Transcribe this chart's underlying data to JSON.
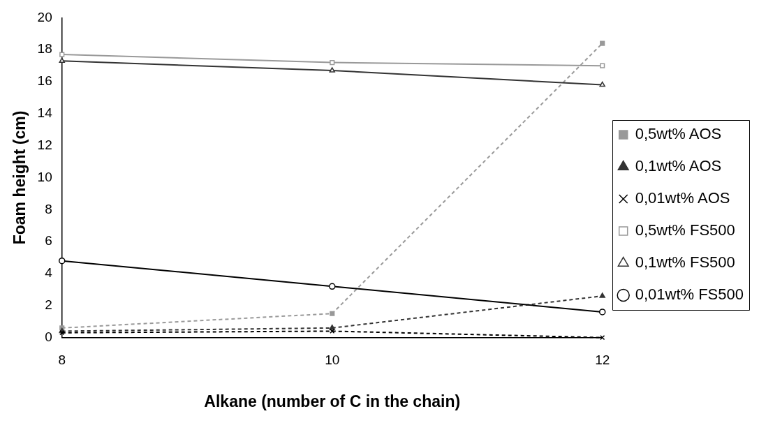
{
  "chart_data": {
    "type": "line",
    "xlabel": "Alkane (number of C in the chain)",
    "ylabel": "Foam height (cm)",
    "x": [
      8,
      10,
      12
    ],
    "xlim": [
      8,
      12
    ],
    "xticks": [
      8,
      10,
      12
    ],
    "ylim": [
      0,
      20
    ],
    "yticks": [
      0,
      2,
      4,
      6,
      8,
      10,
      12,
      14,
      16,
      18,
      20
    ],
    "grid": false,
    "legend": "right",
    "series": [
      {
        "name": "0,5wt% AOS",
        "color": "#999999",
        "marker": "square",
        "line_style": "dashed",
        "values": [
          0.6,
          1.5,
          18.4
        ]
      },
      {
        "name": "0,1wt% AOS",
        "color": "#333333",
        "marker": "triangle",
        "line_style": "dashed",
        "values": [
          0.4,
          0.6,
          2.6
        ]
      },
      {
        "name": "0,01wt% AOS",
        "color": "#000000",
        "marker": "cross",
        "line_style": "dashed",
        "values": [
          0.3,
          0.4,
          0.0
        ]
      },
      {
        "name": "0,5wt% FS500",
        "color": "#999999",
        "marker": "square",
        "line_style": "solid",
        "values": [
          17.7,
          17.2,
          17.0
        ]
      },
      {
        "name": "0,1wt% FS500",
        "color": "#333333",
        "marker": "triangle",
        "line_style": "solid",
        "values": [
          17.3,
          16.7,
          15.8
        ]
      },
      {
        "name": "0,01wt% FS500",
        "color": "#000000",
        "marker": "circle",
        "line_style": "solid",
        "values": [
          4.8,
          3.2,
          1.6
        ]
      }
    ]
  }
}
